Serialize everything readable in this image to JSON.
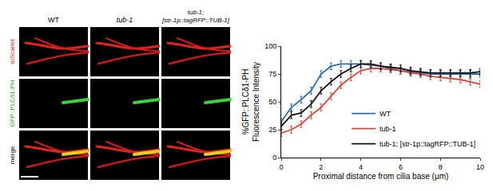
{
  "panels": {
    "columns": [
      "WT",
      "tub-1",
      "tub-1;\n[str-1p::tagRFP::TUB-1]"
    ],
    "rows": [
      {
        "label": "mScarlet",
        "color": "#e8211e"
      },
      {
        "label": "GFP::PLCδ1-PH",
        "color": "#1f9e2c"
      },
      {
        "label": "merge",
        "color": "#000000"
      }
    ]
  },
  "chart_data": {
    "type": "line",
    "xlabel": "Proximal distance from cilia base (μm)",
    "ylabel": "%GFP::PLCδ1-PH\nFluorescence Intensity",
    "x": [
      0,
      0.5,
      1,
      1.5,
      2,
      2.5,
      3,
      3.5,
      4,
      4.5,
      5,
      5.5,
      6,
      6.5,
      7,
      7.5,
      8,
      8.5,
      9,
      9.5,
      10
    ],
    "series": [
      {
        "name": "WT",
        "color": "#2f6da8",
        "values": [
          32,
          45,
          52,
          60,
          75,
          82,
          84,
          84,
          84,
          83,
          82,
          80,
          78,
          77,
          76,
          75,
          75,
          75,
          75,
          75,
          75
        ],
        "error": [
          3,
          3,
          3,
          3,
          3,
          3,
          3,
          3,
          3,
          3,
          3,
          3,
          3,
          3,
          3,
          3,
          3,
          3,
          3,
          3,
          3
        ]
      },
      {
        "name": "tub-1",
        "color": "#d3493f",
        "values": [
          22,
          25,
          30,
          38,
          45,
          55,
          65,
          72,
          78,
          80,
          80,
          79,
          78,
          76,
          75,
          73,
          72,
          71,
          70,
          68,
          66
        ],
        "error": [
          3,
          3,
          3,
          3,
          3,
          3,
          3,
          3,
          3,
          3,
          3,
          3,
          3,
          3,
          3,
          3,
          3,
          3,
          3,
          3,
          3
        ]
      },
      {
        "name": "tub-1; [str-1p::tagRFP::TUB-1]",
        "color": "#111111",
        "values": [
          28,
          38,
          40,
          48,
          60,
          68,
          75,
          80,
          84,
          84,
          82,
          81,
          80,
          78,
          77,
          76,
          76,
          76,
          76,
          76,
          77
        ],
        "error": [
          3,
          3,
          3,
          3,
          3,
          3,
          3,
          3,
          3,
          3,
          3,
          3,
          3,
          3,
          3,
          3,
          3,
          3,
          3,
          3,
          3
        ]
      }
    ],
    "xlim": [
      0,
      10
    ],
    "xticks": [
      0,
      2,
      4,
      6,
      8,
      10
    ],
    "ylim": [
      0,
      100
    ],
    "yticks": [
      0,
      25,
      50,
      75,
      100
    ],
    "grid": false,
    "legend": "bottom right"
  }
}
